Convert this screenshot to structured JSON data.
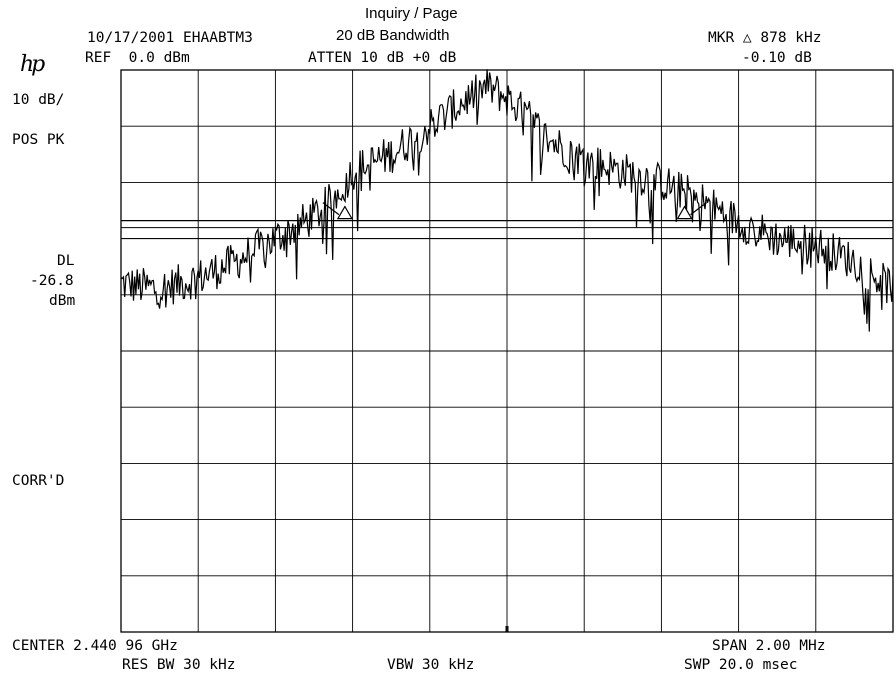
{
  "header": {
    "top_title": "Inquiry / Page",
    "date_line": "10/17/2001 EHAABTM3",
    "test_name": "20 dB Bandwidth",
    "ref": "REF  0.0 dBm",
    "atten": "ATTEN 10 dB +0 dB",
    "marker_label": "MKR △ 878 kHz",
    "marker_value": "-0.10 dB",
    "logo": "hp"
  },
  "left_panel": {
    "scale": "10 dB/",
    "detector": "POS PK",
    "dl_label": "DL",
    "dl_value": "-26.8",
    "dl_unit": "dBm",
    "corr": "CORR'D"
  },
  "footer": {
    "center": "CENTER 2.440 96 GHz",
    "span": "SPAN 2.00 MHz",
    "res_bw": "RES BW 30 kHz",
    "vbw": "VBW 30 kHz",
    "sweep": "SWP 20.0 msec"
  },
  "chart_data": {
    "type": "line",
    "title": "20 dB Bandwidth",
    "xlabel": "",
    "ylabel": "",
    "center_freq_ghz": 2.44096,
    "span_mhz": 2.0,
    "xlim_mhz": [
      -1.0,
      1.0
    ],
    "ylim_db": [
      -100,
      0
    ],
    "ref_level_dbm": 0.0,
    "db_per_div": 10,
    "grid": true,
    "display_line_dbm": -26.8,
    "marker_delta_khz": 878,
    "marker_delta_db": -0.1,
    "markers_mhz": [
      -0.42,
      0.46
    ],
    "series": [
      {
        "x": [
          -1.0,
          -0.9,
          -0.8,
          -0.7,
          -0.6,
          -0.5,
          -0.45,
          -0.4,
          -0.3,
          -0.2,
          -0.1,
          -0.05,
          0.0,
          0.05,
          0.1,
          0.2,
          0.3,
          0.4,
          0.5,
          0.6,
          0.7,
          0.8,
          0.9,
          1.0
        ],
        "y": [
          -38,
          -39,
          -37,
          -34,
          -30,
          -26,
          -23,
          -18,
          -15,
          -10,
          -5,
          -3,
          -5,
          -8,
          -12,
          -16,
          -18,
          -20,
          -23,
          -27,
          -30,
          -31,
          -34,
          -39
        ]
      }
    ]
  }
}
